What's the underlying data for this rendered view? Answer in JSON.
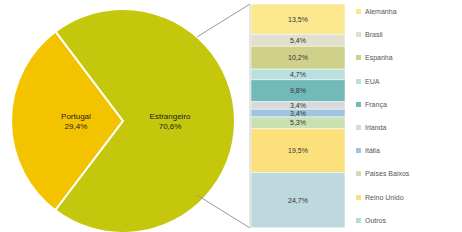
{
  "chart_data": [
    {
      "type": "pie",
      "categories": [
        "Portugal",
        "Estrangeiro"
      ],
      "values": [
        29.4,
        70.6
      ],
      "value_labels": [
        "29,4%",
        "70,6%"
      ],
      "colors": [
        "#f3c300",
        "#c4c70c"
      ],
      "data_labels": true
    },
    {
      "type": "bar",
      "stacked": true,
      "categories": [
        null
      ],
      "series": [
        {
          "name": "Alemanha",
          "color": "#fbe88e",
          "values": [
            13.5
          ],
          "value_labels": [
            "13,5%"
          ]
        },
        {
          "name": "Brasil",
          "color": "#e2dfcc",
          "values": [
            5.4
          ],
          "value_labels": [
            "5,4%"
          ]
        },
        {
          "name": "Espanha",
          "color": "#cfd08a",
          "values": [
            10.2
          ],
          "value_labels": [
            "10,2%"
          ]
        },
        {
          "name": "EUA",
          "color": "#b9dfdf",
          "values": [
            4.7
          ],
          "value_labels": [
            "4,7%"
          ]
        },
        {
          "name": "França",
          "color": "#72b9b9",
          "values": [
            9.8
          ],
          "value_labels": [
            "9,8%"
          ]
        },
        {
          "name": "Irlanda",
          "color": "#dadada",
          "values": [
            3.4
          ],
          "value_labels": [
            "3,4%"
          ]
        },
        {
          "name": "Itália",
          "color": "#9fc4e0",
          "values": [
            3.4
          ],
          "value_labels": [
            "3,4%"
          ]
        },
        {
          "name": "Países Baixos",
          "color": "#c9e1b2",
          "values": [
            5.3
          ],
          "value_labels": [
            "5,3%"
          ]
        },
        {
          "name": "Reino Unido",
          "color": "#fbe07c",
          "values": [
            19.5
          ],
          "value_labels": [
            "19,5%"
          ]
        },
        {
          "name": "Outros",
          "color": "#bed9dd",
          "values": [
            24.7
          ],
          "value_labels": [
            "24,7%"
          ]
        }
      ],
      "ylim": [
        0,
        100
      ],
      "yticks": [
        0,
        100
      ],
      "tick_labels": false,
      "data_labels": true,
      "legend": "right"
    }
  ]
}
